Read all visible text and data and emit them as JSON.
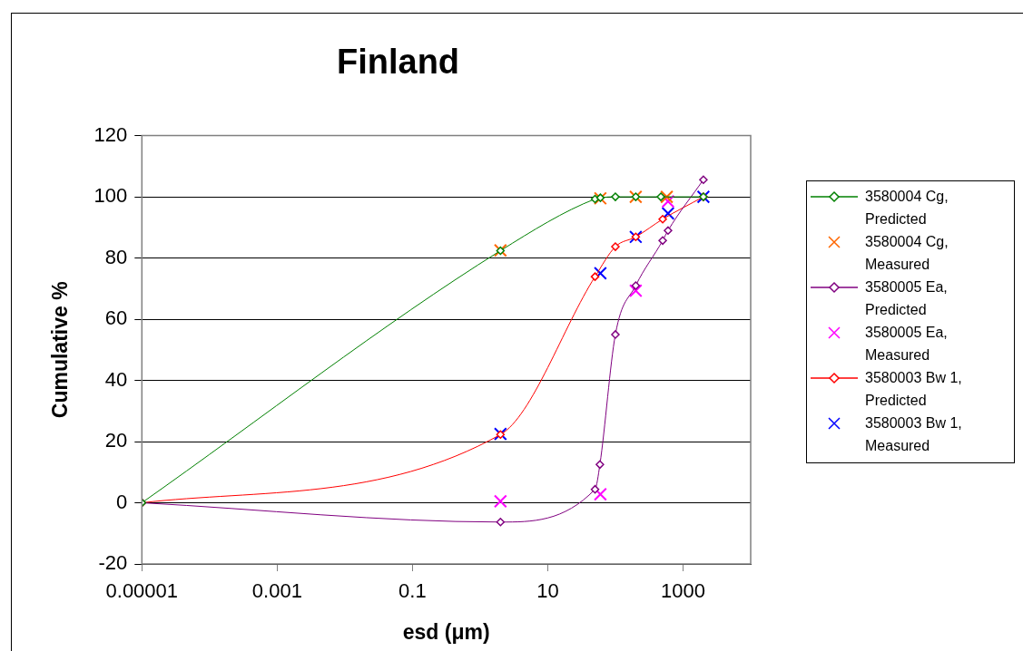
{
  "chart_data": {
    "type": "line",
    "title": "Finland",
    "xlabel": "esd (μm)",
    "ylabel": "Cumulative %",
    "log": "x",
    "grid": "y",
    "legend": "right",
    "xlim": [
      1e-05,
      10000
    ],
    "xticks": [
      {
        "value": 1e-05,
        "label": "0.00001"
      },
      0.001,
      0.1,
      10,
      1000
    ],
    "ylim": [
      -20,
      120
    ],
    "yticks": [
      -20,
      0,
      20,
      40,
      60,
      80,
      100,
      120
    ],
    "series": [
      {
        "name": "3580004 Cg, Predicted",
        "type": "line",
        "marker": "diamond",
        "color": "#008000",
        "x": [
          1e-05,
          2,
          50,
          60,
          100,
          200,
          470,
          2000
        ],
        "values": [
          0,
          82.4,
          99.3,
          99.7,
          100,
          100,
          100,
          100
        ]
      },
      {
        "name": "3580004 Cg, Measured",
        "type": "scatter",
        "marker": "cross",
        "color": "#ff6600",
        "x": [
          2,
          60,
          200,
          575
        ],
        "values": [
          82.5,
          99.5,
          100,
          100
        ]
      },
      {
        "name": "3580005 Ea, Predicted",
        "type": "line",
        "marker": "diamond",
        "color": "#800080",
        "x": [
          1e-05,
          2,
          50,
          59,
          100,
          200,
          500,
          600,
          2000
        ],
        "values": [
          0,
          -6.3,
          4.4,
          12.5,
          55,
          71,
          85.7,
          89,
          105.6
        ]
      },
      {
        "name": "3580005 Ea, Measured",
        "type": "scatter",
        "marker": "cross",
        "color": "#ff00ff",
        "x": [
          2,
          60,
          200,
          600
        ],
        "values": [
          0.5,
          2.8,
          69.3,
          98.5
        ]
      },
      {
        "name": "3580003 Bw 1, Predicted",
        "type": "line",
        "marker": "diamond",
        "color": "#ff0000",
        "x": [
          1e-05,
          2,
          50,
          100,
          200,
          500,
          2000
        ],
        "values": [
          0,
          22.3,
          73.9,
          83.7,
          86.9,
          92.7,
          100
        ]
      },
      {
        "name": "3580003 Bw 1, Measured",
        "type": "scatter",
        "marker": "cross",
        "color": "#0000ff",
        "x": [
          2,
          60,
          200,
          600,
          2000
        ],
        "values": [
          22.5,
          75,
          86.9,
          94.6,
          100
        ]
      }
    ]
  }
}
